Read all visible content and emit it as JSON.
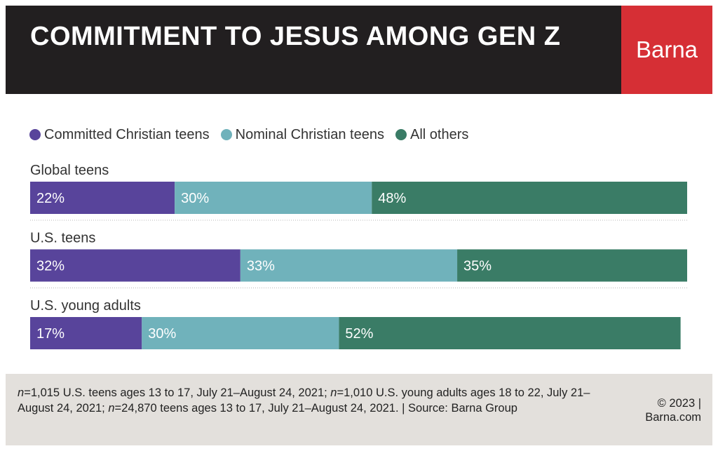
{
  "header": {
    "title": "COMMITMENT TO JESUS AMONG GEN Z",
    "brand": "Barna"
  },
  "colors": {
    "header_bg": "#221f20",
    "brand_bg": "#d62f35",
    "footer_bg": "#e3e0dc"
  },
  "chart_data": {
    "type": "bar",
    "orientation": "horizontal",
    "stacked": true,
    "title": "COMMITMENT TO JESUS AMONG GEN Z",
    "categories": [
      "Global teens",
      "U.S. teens",
      "U.S. young adults"
    ],
    "series": [
      {
        "name": "Committed Christian teens",
        "color": "#58449b",
        "values": [
          22,
          32,
          17
        ],
        "labels": [
          "22%",
          "32%",
          "17%"
        ]
      },
      {
        "name": "Nominal Christian teens",
        "color": "#70b2bb",
        "values": [
          30,
          33,
          30
        ],
        "labels": [
          "30%",
          "33%",
          "30%"
        ]
      },
      {
        "name": "All others",
        "color": "#3a7c66",
        "values": [
          48,
          35,
          52
        ],
        "labels": [
          "48%",
          "35%",
          "52%"
        ]
      }
    ],
    "xlim": [
      0,
      100
    ],
    "unit": "%",
    "legend_position": "top-left",
    "grid": false
  },
  "footer": {
    "n1": "n",
    "text1": "=1,015 U.S. teens ages 13 to 17, July 21–August 24, 2021; ",
    "n2": "n",
    "text2": "=1,010 U.S. young adults ages 18 to 22, July 21–August 24, 2021; ",
    "n3": "n",
    "text3": "=24,870 teens ages 13 to 17, July 21–August 24, 2021. | Source: Barna Group",
    "credit_line1": "© 2023 |",
    "credit_line2": "Barna.com"
  }
}
